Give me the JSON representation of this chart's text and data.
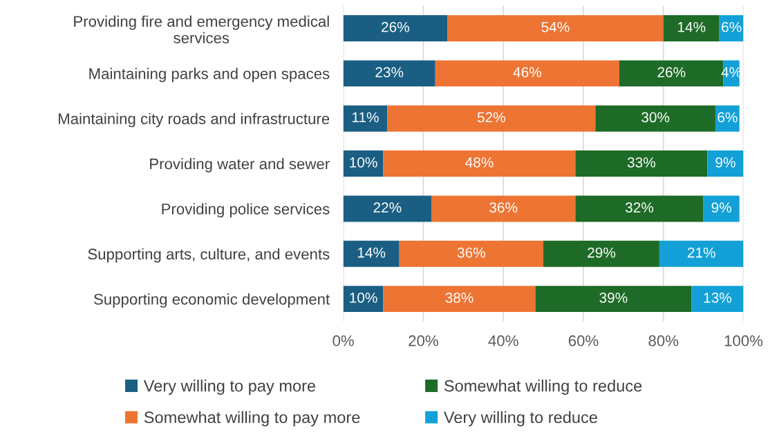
{
  "chart_data": {
    "type": "bar",
    "orientation": "horizontal",
    "stacked": true,
    "categories": [
      "Providing fire and emergency medical\nservices",
      "Maintaining parks and open spaces",
      "Maintaining city roads and infrastructure",
      "Providing water and sewer",
      "Providing police services",
      "Supporting arts, culture, and events",
      "Supporting economic development"
    ],
    "series": [
      {
        "name": "Very willing to pay more",
        "color": "#1b5e83",
        "values": [
          26,
          23,
          11,
          10,
          22,
          14,
          10
        ],
        "value_labels": [
          "26%",
          "23%",
          "11%",
          "10%",
          "22%",
          "14%",
          "10%"
        ]
      },
      {
        "name": "Somewhat willing to pay more",
        "color": "#ed7433",
        "values": [
          54,
          46,
          52,
          48,
          36,
          36,
          38
        ],
        "value_labels": [
          "54%",
          "46%",
          "52%",
          "48%",
          "36%",
          "36%",
          "38%"
        ]
      },
      {
        "name": "Somewhat willing to reduce",
        "color": "#1d6b27",
        "values": [
          14,
          26,
          30,
          33,
          32,
          29,
          39
        ],
        "value_labels": [
          "14%",
          "26%",
          "30%",
          "33%",
          "32%",
          "29%",
          "39%"
        ]
      },
      {
        "name": "Very willing to reduce",
        "color": "#12a0d7",
        "values": [
          6,
          4,
          6,
          9,
          9,
          21,
          13
        ],
        "value_labels": [
          "6%",
          "4%",
          "6%",
          "9%",
          "9%",
          "21%",
          "13%"
        ]
      }
    ],
    "xlim": [
      0,
      100
    ],
    "xticks": [
      {
        "value": 0,
        "label": "0%"
      },
      {
        "value": 20,
        "label": "20%"
      },
      {
        "value": 40,
        "label": "40%"
      },
      {
        "value": 60,
        "label": "60%"
      },
      {
        "value": 80,
        "label": "80%"
      },
      {
        "value": 100,
        "label": "100%"
      }
    ],
    "grid": "x",
    "legend": "bottom"
  }
}
